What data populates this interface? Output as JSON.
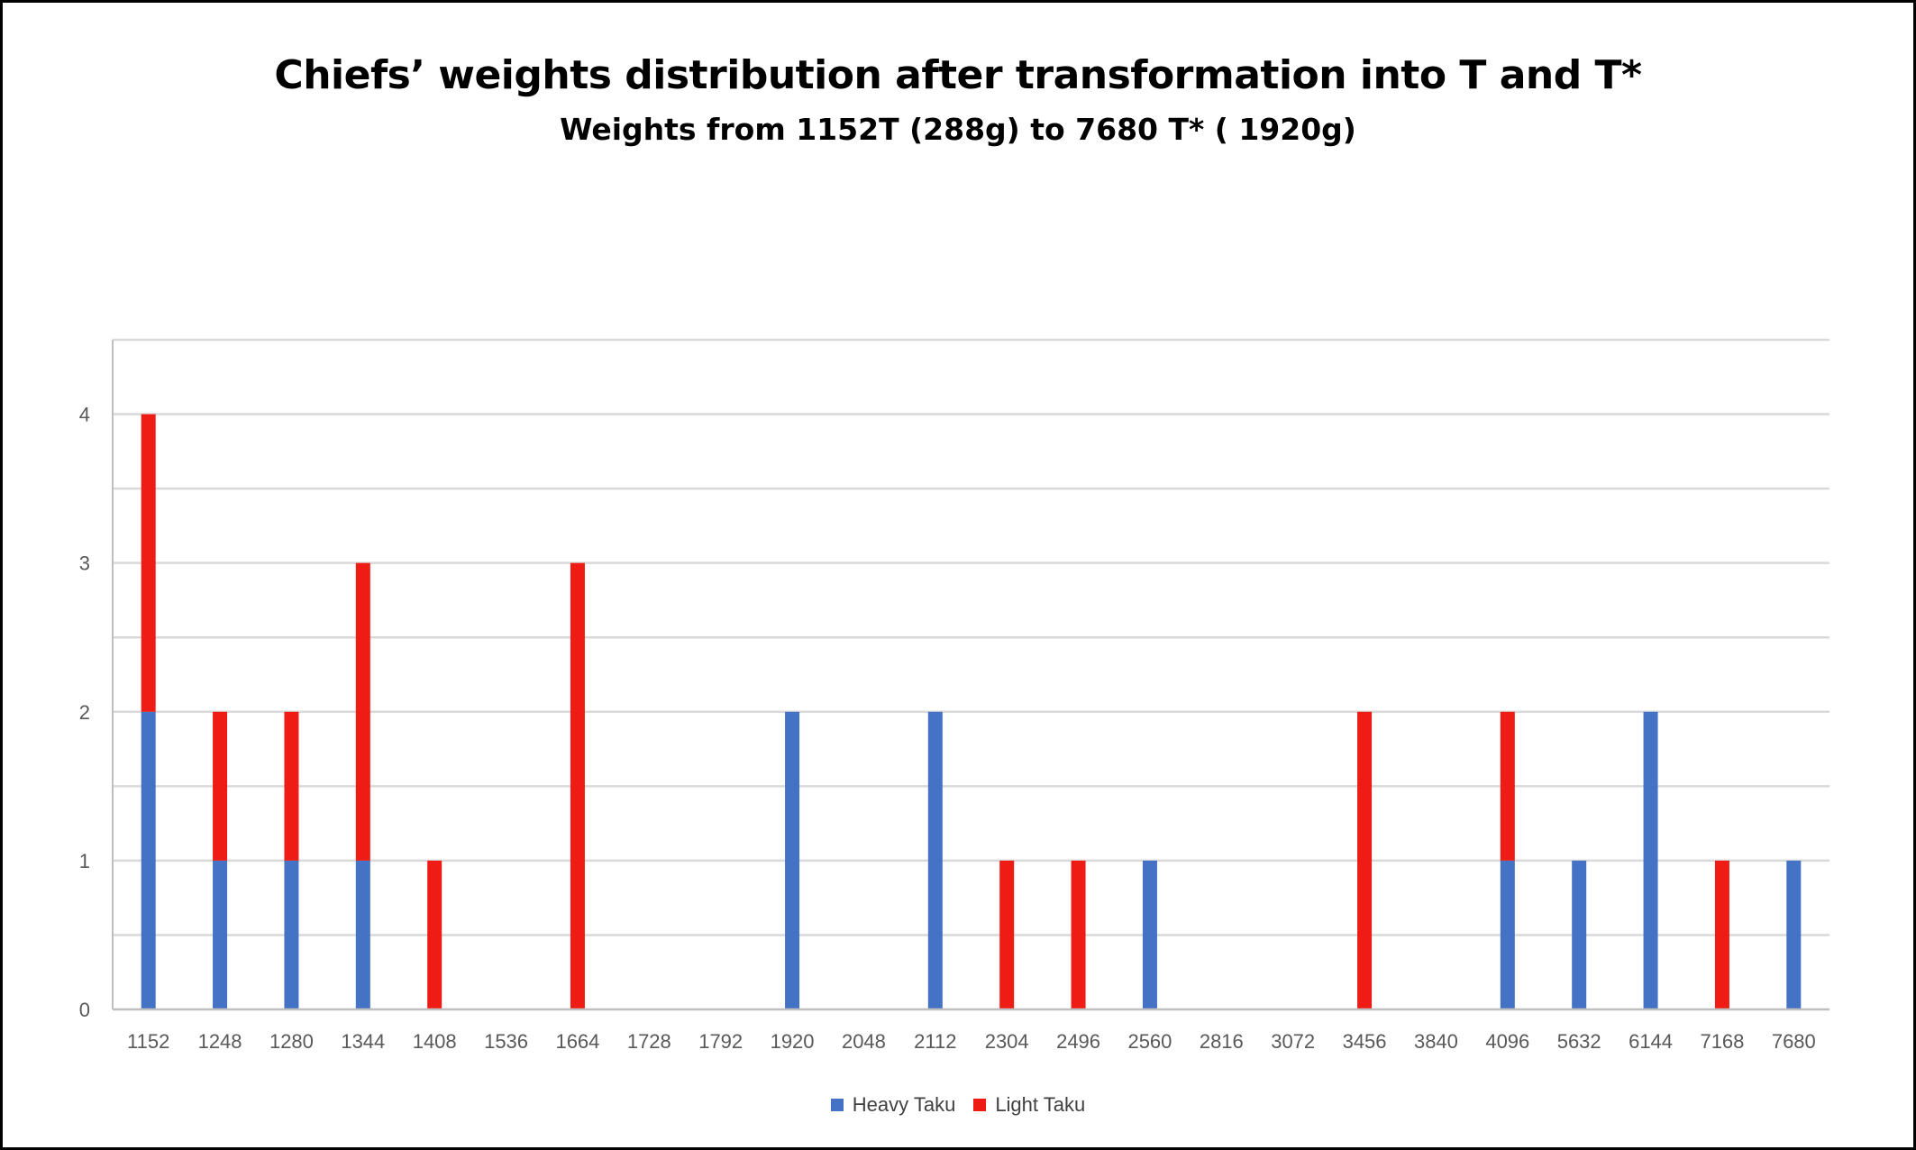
{
  "chart_data": {
    "type": "bar",
    "stacked": true,
    "title": "Chiefs’ weights distribution after transformation into T and T*",
    "subtitle": "Weights from 1152T (288g) to 7680 T* ( 1920g)",
    "xlabel": "",
    "ylabel": "",
    "categories": [
      "1152",
      "1248",
      "1280",
      "1344",
      "1408",
      "1536",
      "1664",
      "1728",
      "1792",
      "1920",
      "2048",
      "2112",
      "2304",
      "2496",
      "2560",
      "2816",
      "3072",
      "3456",
      "3840",
      "4096",
      "5632",
      "6144",
      "7168",
      "7680"
    ],
    "y_ticks": [
      "0",
      "1",
      "2",
      "3",
      "4"
    ],
    "ylim": [
      0,
      4.5
    ],
    "grid": true,
    "legend_position": "bottom",
    "series": [
      {
        "name": "Heavy Taku",
        "color": "#4472C4",
        "values": [
          2,
          1,
          1,
          1,
          0,
          0,
          0,
          0,
          0,
          2,
          0,
          2,
          0,
          0,
          1,
          0,
          0,
          0,
          0,
          1,
          1,
          2,
          0,
          1
        ]
      },
      {
        "name": "Light Taku",
        "color": "#EE1C14",
        "values": [
          2,
          1,
          1,
          2,
          1,
          0,
          3,
          0,
          0,
          0,
          0,
          0,
          1,
          1,
          0,
          0,
          0,
          2,
          0,
          1,
          0,
          0,
          1,
          0
        ]
      }
    ]
  }
}
